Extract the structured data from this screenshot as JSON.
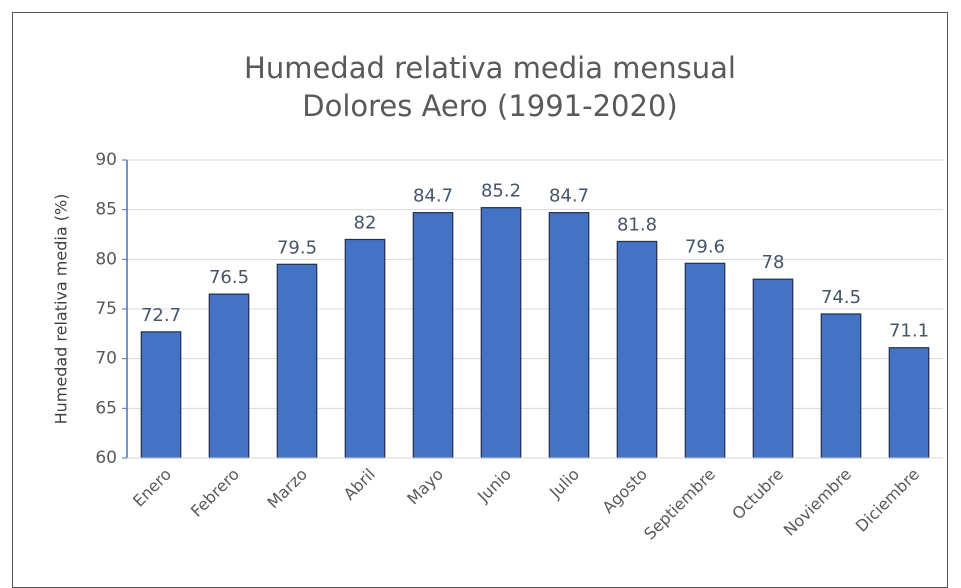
{
  "chart_data": {
    "type": "bar",
    "title": "Humedad relativa media mensual",
    "subtitle": "Dolores Aero (1991-2020)",
    "y_label": "Humedad relativa media (%)",
    "categories": [
      "Enero",
      "Febrero",
      "Marzo",
      "Abril",
      "Mayo",
      "Junio",
      "Julio",
      "Agosto",
      "Septiembre",
      "Octubre",
      "Noviembre",
      "Diciembre"
    ],
    "values": [
      72.7,
      76.5,
      79.5,
      82,
      84.7,
      85.2,
      84.7,
      81.8,
      79.6,
      78,
      74.5,
      71.1
    ],
    "color": "#4472c4",
    "ylim": [
      60,
      90
    ],
    "yticks": [
      60,
      65,
      70,
      75,
      80,
      85,
      90
    ],
    "grid": true
  }
}
